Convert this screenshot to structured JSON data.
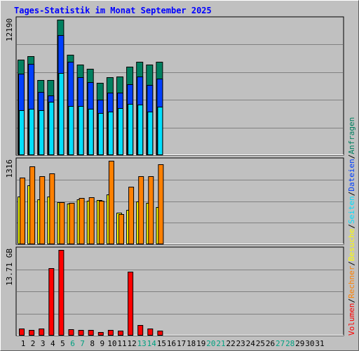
{
  "chart_data": {
    "type": "bar",
    "title": "Tages-Statistik im Monat September 2025",
    "days": [
      "1",
      "2",
      "3",
      "4",
      "5",
      "6",
      "7",
      "8",
      "9",
      "10",
      "11",
      "12",
      "13",
      "14",
      "15",
      "16",
      "17",
      "18",
      "19",
      "20",
      "21",
      "22",
      "23",
      "24",
      "25",
      "26",
      "27",
      "28",
      "29",
      "30",
      "31"
    ],
    "weekend_days": [
      "6",
      "7",
      "13",
      "14",
      "20",
      "21",
      "27",
      "28"
    ],
    "panels": [
      {
        "id": "top",
        "max_label": "12190",
        "ymax": 12190,
        "series": [
          {
            "name": "Anfragen",
            "color": "#008060",
            "values": [
              8580,
              8930,
              6750,
              6750,
              12190,
              9050,
              8160,
              7760,
              6500,
              7000,
              7070,
              7950,
              8400,
              8140,
              8380,
              0,
              0,
              0,
              0,
              0,
              0,
              0,
              0,
              0,
              0,
              0,
              0,
              0,
              0,
              0,
              0
            ]
          },
          {
            "name": "Dateien",
            "color": "#0040ff",
            "values": [
              7320,
              8200,
              5660,
              5350,
              10800,
              8430,
              7000,
              6600,
              5000,
              5640,
              5650,
              6360,
              7100,
              6340,
              6900,
              0,
              0,
              0,
              0,
              0,
              0,
              0,
              0,
              0,
              0,
              0,
              0,
              0,
              0,
              0,
              0
            ]
          },
          {
            "name": "Seiten",
            "color": "#00e0ff",
            "values": [
              4040,
              4140,
              4040,
              4800,
              7400,
              4440,
              4450,
              4140,
              3760,
              3920,
              4230,
              4640,
              4560,
              3940,
              4350,
              0,
              0,
              0,
              0,
              0,
              0,
              0,
              0,
              0,
              0,
              0,
              0,
              0,
              0,
              0,
              0
            ]
          }
        ]
      },
      {
        "id": "middle",
        "max_label": "1316",
        "ymax": 1316,
        "series": [
          {
            "name": "Besuche",
            "color": "#ffff00",
            "values": [
              757,
              931,
              706,
              755,
              658,
              643,
              706,
              682,
              702,
              780,
              496,
              544,
              679,
              653,
              586,
              0,
              0,
              0,
              0,
              0,
              0,
              0,
              0,
              0,
              0,
              0,
              0,
              0,
              0,
              0,
              0
            ]
          },
          {
            "name": "Rechner",
            "color": "#ff8000",
            "values": [
              1046,
              1222,
              1073,
              1117,
              666,
              647,
              727,
              738,
              684,
              1316,
              478,
              908,
              1073,
              1073,
              1266,
              0,
              0,
              0,
              0,
              0,
              0,
              0,
              0,
              0,
              0,
              0,
              0,
              0,
              0,
              0,
              0
            ]
          }
        ]
      },
      {
        "id": "bottom",
        "max_label": "13.71 GB",
        "ymax": 13.71,
        "series": [
          {
            "name": "Volumen",
            "color": "#ff0000",
            "values": [
              1.07,
              0.85,
              1.07,
              10.76,
              13.71,
              1.01,
              0.89,
              0.89,
              0.57,
              0.89,
              0.76,
              10.22,
              1.71,
              1.14,
              0.76,
              0,
              0,
              0,
              0,
              0,
              0,
              0,
              0,
              0,
              0,
              0,
              0,
              0,
              0,
              0,
              0
            ]
          }
        ]
      }
    ],
    "legend": [
      {
        "text": "Volumen",
        "color": "#ff0000"
      },
      {
        "text": "Rechner",
        "color": "#ff8000"
      },
      {
        "text": "Besuche",
        "color": "#ffff00"
      },
      {
        "text": "Seiten",
        "color": "#00e0ff"
      },
      {
        "text": "Dateien",
        "color": "#0040ff"
      },
      {
        "text": "Anfragen",
        "color": "#008060"
      }
    ],
    "legend_separator": "/",
    "grid": true,
    "legend_placement": "right, vertical",
    "colors": {
      "background": "#c0c0c0",
      "title": "#0000ff",
      "axis_text": "#000000",
      "weekend_text": "#00a080",
      "separator": "#000000"
    }
  }
}
